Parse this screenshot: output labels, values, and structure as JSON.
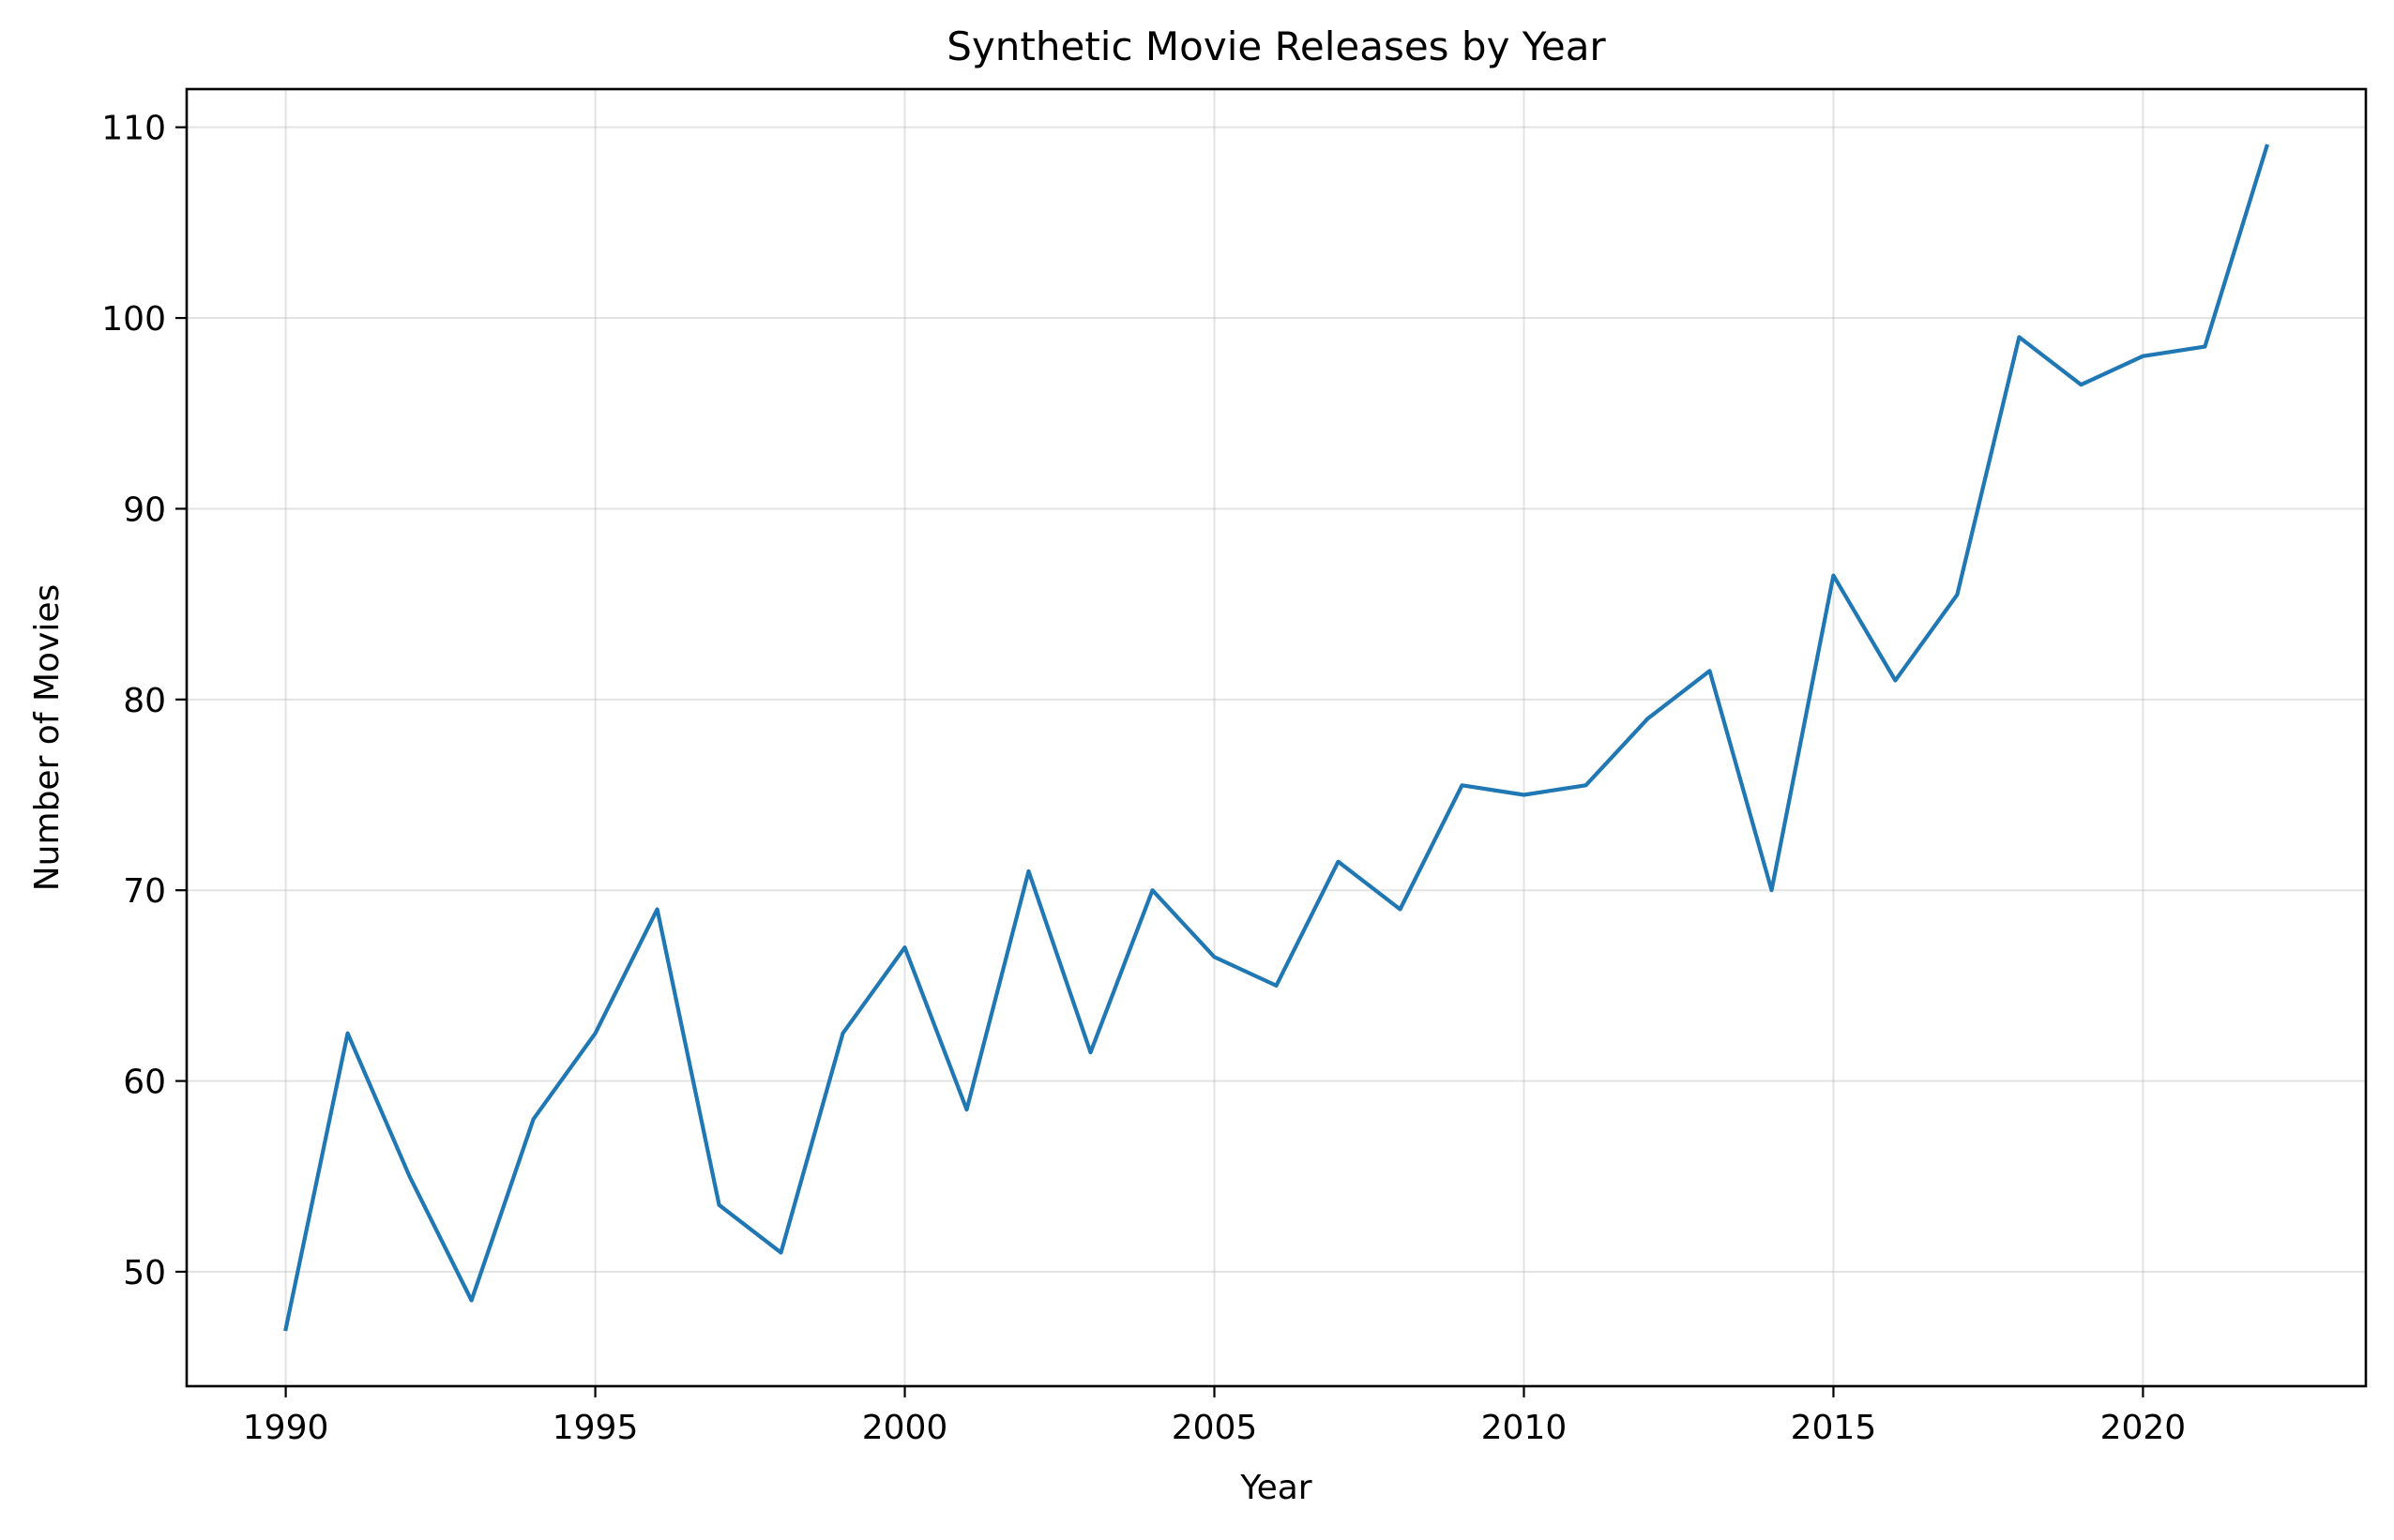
{
  "chart_data": {
    "type": "line",
    "title": "Synthetic Movie Releases by Year",
    "xlabel": "Year",
    "ylabel": "Number of Movies",
    "xlim": [
      1988.4,
      2023.6
    ],
    "ylim": [
      44,
      112
    ],
    "xticks": [
      1990,
      1995,
      2000,
      2005,
      2010,
      2015,
      2020
    ],
    "yticks": [
      50,
      60,
      70,
      80,
      90,
      100,
      110
    ],
    "grid": true,
    "legend": "none",
    "series": [
      {
        "color": "#1f77b4",
        "x": [
          1990,
          1991,
          1992,
          1993,
          1994,
          1995,
          1996,
          1997,
          1998,
          1999,
          2000,
          2001,
          2002,
          2003,
          2004,
          2005,
          2006,
          2007,
          2008,
          2009,
          2010,
          2011,
          2012,
          2013,
          2014,
          2015,
          2016,
          2017,
          2018,
          2019,
          2020,
          2021,
          2022
        ],
        "y": [
          47,
          62.5,
          55,
          48.5,
          58,
          62.5,
          69,
          53.5,
          51,
          62.5,
          67,
          58.5,
          71,
          61.5,
          70,
          66.5,
          65,
          71.5,
          69,
          75.5,
          75,
          75.5,
          79,
          81.5,
          70,
          86.5,
          81,
          85.5,
          99,
          96.5,
          98,
          98.5,
          109
        ]
      }
    ]
  }
}
